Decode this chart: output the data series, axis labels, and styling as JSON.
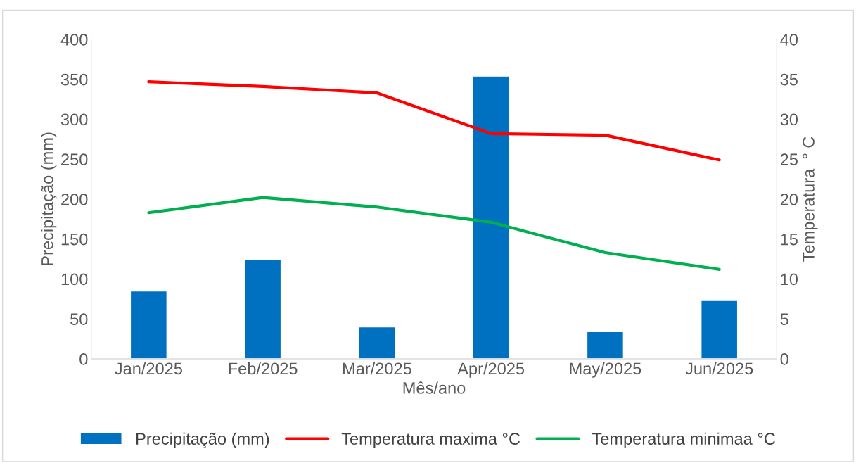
{
  "chart_data": {
    "type": "bar",
    "xlabel": "Mês/ano",
    "ylabel": "Precipitação (mm)",
    "y2label": "Temperatura  ° C",
    "categories": [
      "Jan/2025",
      "Feb/2025",
      "Mar/2025",
      "Apr/2025",
      "May/2025",
      "Jun/2025"
    ],
    "series": [
      {
        "name": "Precipitação (mm)",
        "color": "#0070c0",
        "values": [
          85,
          124,
          40,
          354,
          34,
          73
        ]
      },
      {
        "name": "Temperatura maxima °C",
        "type": "line",
        "axis": "y2",
        "color": "#ff0000",
        "values": [
          34.7,
          34.1,
          33.3,
          28.2,
          28.0,
          24.9
        ]
      },
      {
        "name": "Temperatura minimaa °C",
        "type": "line",
        "axis": "y2",
        "color": "#00b050",
        "values": [
          18.3,
          20.2,
          19.0,
          17.1,
          13.3,
          11.2
        ]
      }
    ],
    "ylim": [
      0,
      400
    ],
    "yticks": [
      0,
      50,
      100,
      150,
      200,
      250,
      300,
      350,
      400
    ],
    "y2lim": [
      0,
      40
    ],
    "y2ticks": [
      0,
      5,
      10,
      15,
      20,
      25,
      30,
      35,
      40
    ],
    "grid": false,
    "legend": "bottom",
    "marker": "none",
    "line_style": "solid"
  }
}
